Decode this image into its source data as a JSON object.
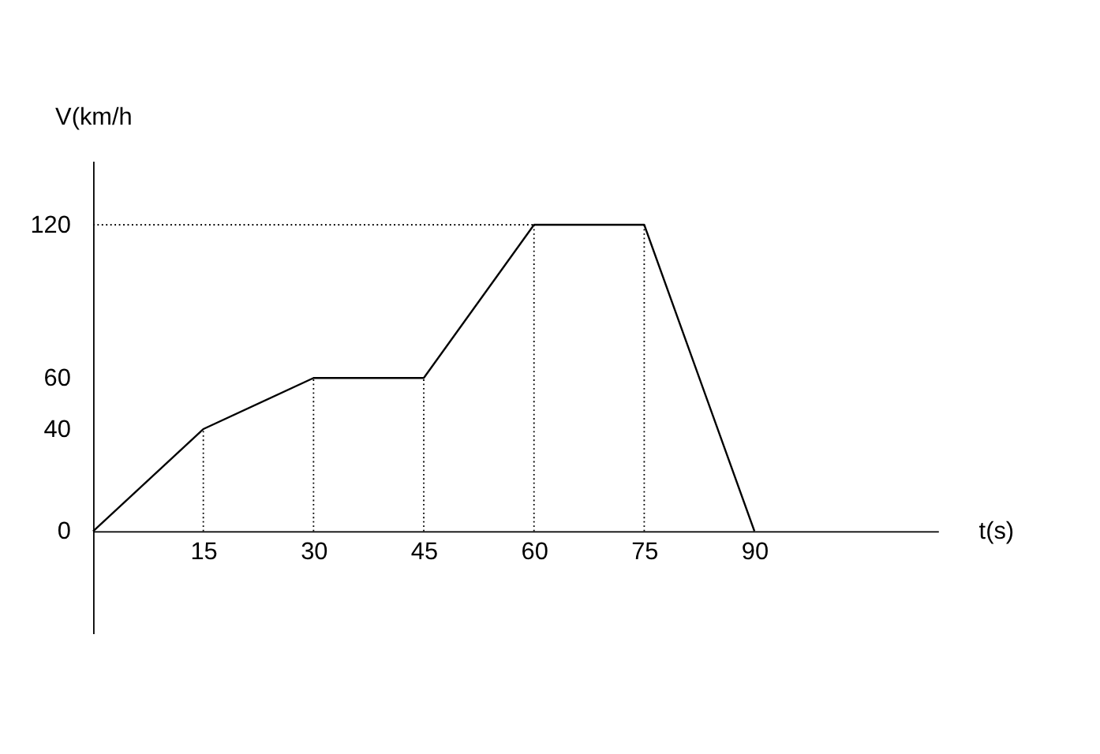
{
  "chart_data": {
    "type": "line",
    "xlabel": "t(s)",
    "ylabel": "V(km/h",
    "x": [
      0,
      15,
      30,
      45,
      60,
      75,
      90
    ],
    "series": [
      {
        "color": "#000000",
        "values": [
          0,
          40,
          60,
          60,
          120,
          120,
          0
        ]
      }
    ],
    "xlim": [
      0,
      115
    ],
    "ylim": [
      -40,
      145
    ],
    "xticks": [
      15,
      30,
      45,
      60,
      75,
      90
    ],
    "yticks": [
      0,
      40,
      60,
      120
    ],
    "grid": false,
    "marker": "none",
    "line_style": "solid",
    "ref_lines": [
      {
        "axis": "x",
        "value": 15,
        "line_style": "dotted"
      },
      {
        "axis": "x",
        "value": 30,
        "line_style": "dotted"
      },
      {
        "axis": "x",
        "value": 45,
        "line_style": "dotted"
      },
      {
        "axis": "x",
        "value": 60,
        "line_style": "dotted"
      },
      {
        "axis": "x",
        "value": 75,
        "line_style": "dotted"
      },
      {
        "axis": "y",
        "value": 120,
        "line_style": "dotted"
      }
    ]
  }
}
